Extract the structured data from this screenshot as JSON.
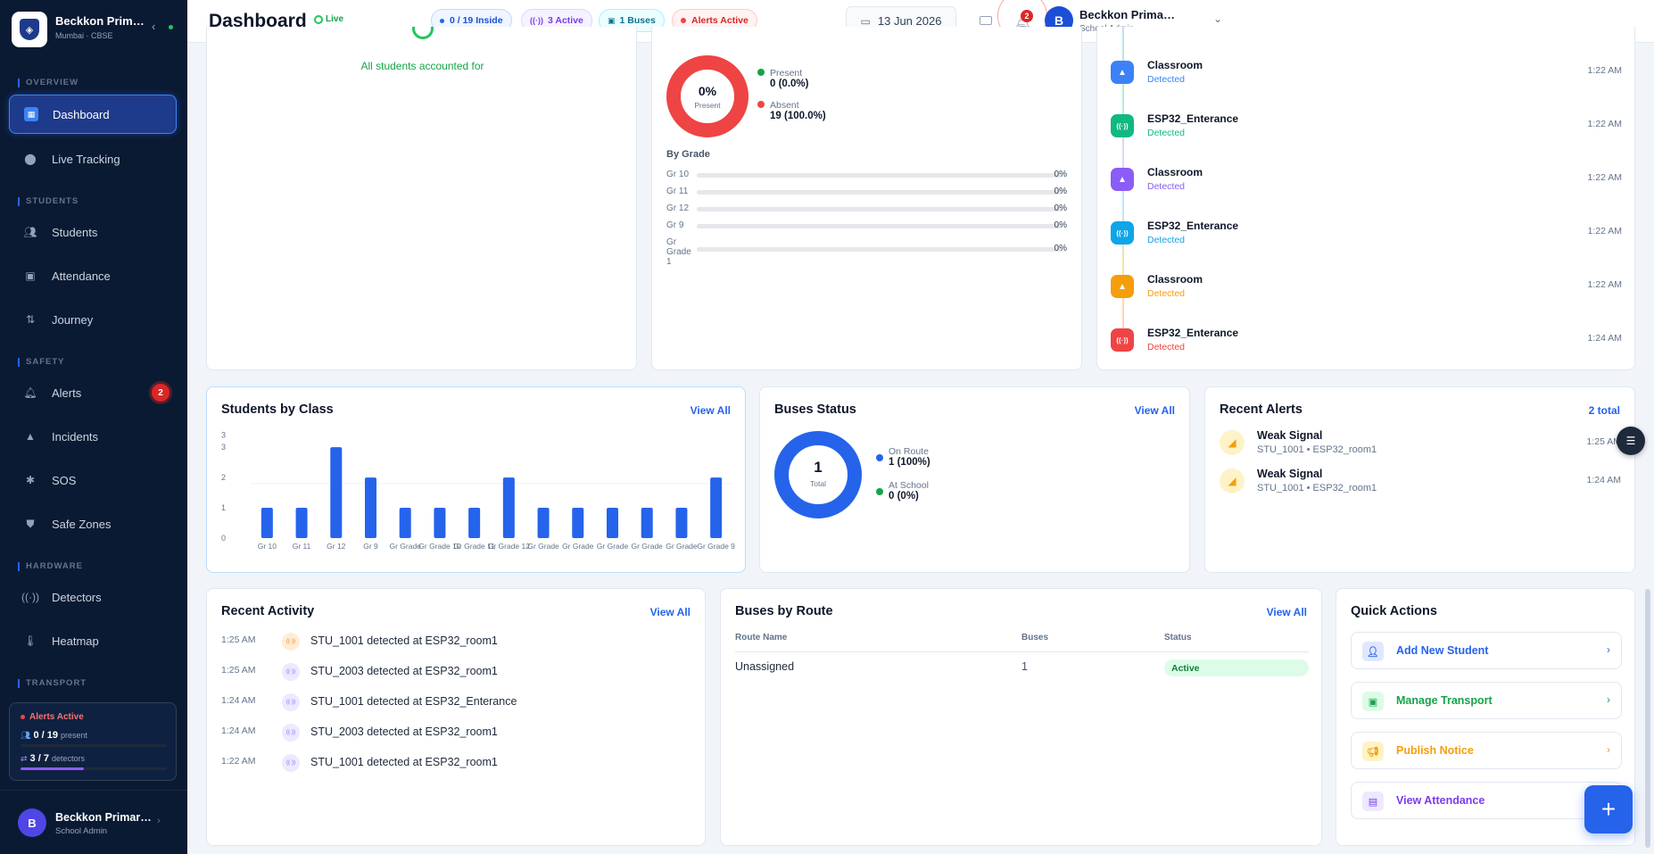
{
  "app": {
    "name": "Beckkon Primary School",
    "location": "Mumbai · CBSE"
  },
  "sidebar": {
    "sections": {
      "overview": "OVERVIEW",
      "students": "STUDENTS",
      "safety": "SAFETY",
      "hardware": "HARDWARE",
      "transport": "TRANSPORT"
    },
    "items": [
      {
        "label": "Dashboard",
        "icon": "grid-icon"
      },
      {
        "label": "Live Tracking",
        "icon": "map-pin-icon"
      },
      {
        "label": "Students",
        "icon": "users-icon"
      },
      {
        "label": "Attendance",
        "icon": "calendar-check-icon"
      },
      {
        "label": "Journey",
        "icon": "route-icon"
      },
      {
        "label": "Alerts",
        "icon": "bell-icon",
        "badge": "2"
      },
      {
        "label": "Incidents",
        "icon": "warning-icon"
      },
      {
        "label": "SOS",
        "icon": "asterisk-icon"
      },
      {
        "label": "Safe Zones",
        "icon": "shield-icon"
      },
      {
        "label": "Detectors",
        "icon": "signal-icon"
      },
      {
        "label": "Heatmap",
        "icon": "thermometer-icon"
      }
    ],
    "status": {
      "alert": "Alerts Active",
      "present_value": "0 / 19",
      "present_label": "present",
      "present_fraction": 0,
      "detectors_value": "3 / 7",
      "detectors_label": "detectors",
      "detectors_fraction": 0.43
    },
    "user": {
      "initial": "B",
      "name": "Beckkon Primary School",
      "role": "School Admin"
    }
  },
  "header": {
    "title": "Dashboard",
    "live": "Live",
    "pills": {
      "inside": "0 / 19 Inside",
      "active": "3 Active",
      "buses": "1 Buses",
      "alerts": "Alerts Active"
    },
    "date": "13 Jun 2026",
    "bell_count": "2",
    "user": {
      "initial": "B",
      "name": "Beckkon Primary School",
      "role": "School Admin"
    }
  },
  "top_left": {
    "status_text": "All students accounted for"
  },
  "attendance": {
    "center_value": "0%",
    "center_label": "Present",
    "present_fraction": 0,
    "legend": [
      {
        "label": "Present",
        "value": "0 (0.0%)",
        "color": "#16a34a"
      },
      {
        "label": "Absent",
        "value": "19 (100.0%)",
        "color": "#ef4444"
      }
    ],
    "by_grade_title": "By Grade",
    "grades": [
      {
        "label": "Gr 10",
        "value": "0%"
      },
      {
        "label": "Gr 11",
        "value": "0%"
      },
      {
        "label": "Gr 12",
        "value": "0%"
      },
      {
        "label": "Gr 9",
        "value": "0%"
      },
      {
        "label": "Gr Grade 1",
        "value": "0%"
      }
    ]
  },
  "timeline": [
    {
      "name": "Classroom",
      "status": "Detected",
      "time": "1:22 AM",
      "color": "#3b82f6",
      "icon": "graduation-cap-icon"
    },
    {
      "name": "ESP32_Enterance",
      "status": "Detected",
      "time": "1:22 AM",
      "color": "#10b981",
      "icon": "signal-icon"
    },
    {
      "name": "Classroom",
      "status": "Detected",
      "time": "1:22 AM",
      "color": "#8b5cf6",
      "icon": "graduation-cap-icon"
    },
    {
      "name": "ESP32_Enterance",
      "status": "Detected",
      "time": "1:22 AM",
      "color": "#0ea5e9",
      "icon": "signal-icon"
    },
    {
      "name": "Classroom",
      "status": "Detected",
      "time": "1:22 AM",
      "color": "#f59e0b",
      "icon": "graduation-cap-icon"
    },
    {
      "name": "ESP32_Enterance",
      "status": "Detected",
      "time": "1:24 AM",
      "color": "#ef4444",
      "icon": "signal-icon"
    }
  ],
  "students_by_class": {
    "title": "Students by Class",
    "view_all": "View All"
  },
  "chart_data": {
    "type": "bar",
    "categories": [
      "Gr 10",
      "Gr 11",
      "Gr 12",
      "Gr 9",
      "Gr Grade",
      "Gr Grade 10",
      "Gr Grade 11",
      "Gr Grade 12",
      "Gr Grade",
      "Gr Grade",
      "Gr Grade",
      "Gr Grade",
      "Gr Grade",
      "Gr Grade 9"
    ],
    "values": [
      1,
      1,
      3,
      2,
      1,
      1,
      1,
      2,
      1,
      1,
      1,
      1,
      1,
      2
    ],
    "y_ticks": [
      "0",
      "1",
      "2",
      "3",
      "3"
    ],
    "ylim": [
      0,
      3.3
    ],
    "grid": true,
    "color": "#2563eb"
  },
  "buses_status": {
    "title": "Buses Status",
    "view_all": "View All",
    "center_value": "1",
    "center_label": "Total",
    "on_route_fraction": 1,
    "legend": [
      {
        "label": "On Route",
        "value": "1 (100%)",
        "color": "#2563eb"
      },
      {
        "label": "At School",
        "value": "0 (0%)",
        "color": "#16a34a"
      }
    ]
  },
  "recent_alerts": {
    "title": "Recent Alerts",
    "total": "2 total",
    "items": [
      {
        "title": "Weak Signal",
        "detail": "STU_1001 • ESP32_room1",
        "time": "1:25 AM"
      },
      {
        "title": "Weak Signal",
        "detail": "STU_1001 • ESP32_room1",
        "time": "1:24 AM"
      }
    ]
  },
  "recent_activity": {
    "title": "Recent Activity",
    "view_all": "View All",
    "items": [
      {
        "time": "1:25 AM",
        "text": "STU_1001 detected at ESP32_room1",
        "tone": "orange"
      },
      {
        "time": "1:25 AM",
        "text": "STU_2003 detected at ESP32_room1",
        "tone": "purple"
      },
      {
        "time": "1:24 AM",
        "text": "STU_1001 detected at ESP32_Enterance",
        "tone": "purple"
      },
      {
        "time": "1:24 AM",
        "text": "STU_2003 detected at ESP32_room1",
        "tone": "purple"
      },
      {
        "time": "1:22 AM",
        "text": "STU_1001 detected at ESP32_room1",
        "tone": "purple"
      }
    ]
  },
  "buses_by_route": {
    "title": "Buses by Route",
    "view_all": "View All",
    "columns": [
      "Route Name",
      "Buses",
      "Status"
    ],
    "rows": [
      {
        "route": "Unassigned",
        "buses": "1",
        "status": "Active"
      }
    ]
  },
  "quick_actions": {
    "title": "Quick Actions",
    "items": [
      {
        "label": "Add New Student",
        "color": "#2563eb",
        "bg": "#e0e7ff",
        "icon": "user-plus-icon"
      },
      {
        "label": "Manage Transport",
        "color": "#16a34a",
        "bg": "#dcfce7",
        "icon": "bus-icon"
      },
      {
        "label": "Publish Notice",
        "color": "#f59e0b",
        "bg": "#fef3c7",
        "icon": "megaphone-icon"
      },
      {
        "label": "View Attendance",
        "color": "#7c3aed",
        "bg": "#ede9fe",
        "icon": "clipboard-icon"
      }
    ]
  },
  "fab": "+"
}
